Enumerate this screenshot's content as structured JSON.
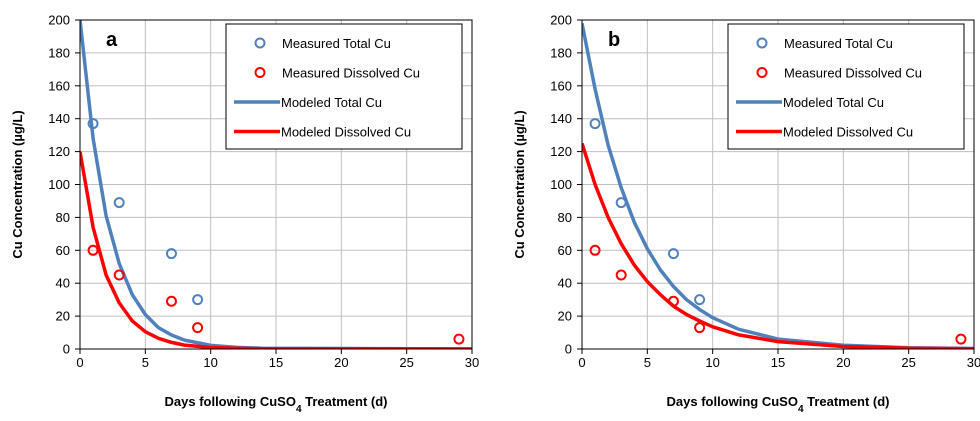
{
  "chart_data": [
    {
      "type": "scatter",
      "panel_label": "a",
      "xlabel": "Days following CuSO",
      "xlabel_sub": "4",
      "xlabel_rest": " Treatment (d)",
      "ylabel": "Cu Concentration (µg/L)",
      "xlim": [
        0,
        30
      ],
      "ylim": [
        0,
        200
      ],
      "xticks": [
        0,
        5,
        10,
        15,
        20,
        25,
        30
      ],
      "yticks": [
        0,
        20,
        40,
        60,
        80,
        100,
        120,
        140,
        160,
        180,
        200
      ],
      "grid": true,
      "legend_position": "top-right",
      "series": [
        {
          "name": "Measured Total Cu",
          "kind": "markers",
          "color": "#4f81bd",
          "x": [
            1,
            3,
            7,
            9
          ],
          "y": [
            137,
            89,
            58,
            30
          ]
        },
        {
          "name": "Measured Dissolved Cu",
          "kind": "markers",
          "color": "#ff0000",
          "x": [
            1,
            3,
            7,
            9,
            29
          ],
          "y": [
            60,
            45,
            29,
            13,
            6
          ]
        },
        {
          "name": "Modeled Total Cu",
          "kind": "line",
          "color": "#4f81bd",
          "x": [
            0,
            1,
            2,
            3,
            4,
            5,
            6,
            7,
            8,
            10,
            12,
            14,
            30
          ],
          "y": [
            200,
            128,
            81,
            52,
            33,
            21,
            13,
            8.5,
            5.4,
            2.2,
            1,
            0.5,
            0
          ]
        },
        {
          "name": "Modeled Dissolved Cu",
          "kind": "line",
          "color": "#ff0000",
          "x": [
            0,
            1,
            2,
            3,
            4,
            5,
            6,
            7,
            8,
            10,
            12,
            14,
            30
          ],
          "y": [
            120,
            74,
            45,
            28,
            17,
            10.5,
            6.5,
            4,
            2.4,
            0.9,
            0.4,
            0.2,
            0
          ]
        }
      ]
    },
    {
      "type": "scatter",
      "panel_label": "b",
      "xlabel": "Days following CuSO",
      "xlabel_sub": "4",
      "xlabel_rest": " Treatment (d)",
      "ylabel": "Cu Concentration (µg/L)",
      "xlim": [
        0,
        30
      ],
      "ylim": [
        0,
        200
      ],
      "xticks": [
        0,
        5,
        10,
        15,
        20,
        25,
        30
      ],
      "yticks": [
        0,
        20,
        40,
        60,
        80,
        100,
        120,
        140,
        160,
        180,
        200
      ],
      "grid": true,
      "legend_position": "top-right",
      "series": [
        {
          "name": "Measured Total Cu",
          "kind": "markers",
          "color": "#4f81bd",
          "x": [
            1,
            3,
            7,
            9
          ],
          "y": [
            137,
            89,
            58,
            30
          ]
        },
        {
          "name": "Measured Dissolved Cu",
          "kind": "markers",
          "color": "#ff0000",
          "x": [
            1,
            3,
            7,
            9,
            29
          ],
          "y": [
            60,
            45,
            29,
            13,
            6
          ]
        },
        {
          "name": "Modeled Total Cu",
          "kind": "line",
          "color": "#4f81bd",
          "x": [
            0,
            1,
            2,
            3,
            4,
            5,
            6,
            7,
            8,
            9,
            10,
            12,
            15,
            20,
            25,
            30
          ],
          "y": [
            198,
            158,
            124,
            98,
            77,
            61,
            48,
            38,
            30,
            24,
            19,
            12,
            6,
            2.3,
            0.8,
            0.3
          ]
        },
        {
          "name": "Modeled Dissolved Cu",
          "kind": "line",
          "color": "#ff0000",
          "x": [
            0,
            1,
            2,
            3,
            4,
            5,
            6,
            7,
            8,
            9,
            10,
            12,
            15,
            20,
            25,
            30
          ],
          "y": [
            125,
            100,
            80,
            64,
            51,
            41,
            33,
            26,
            21,
            17,
            13.5,
            8.6,
            4.5,
            1.5,
            0.5,
            0.2
          ]
        }
      ]
    }
  ]
}
